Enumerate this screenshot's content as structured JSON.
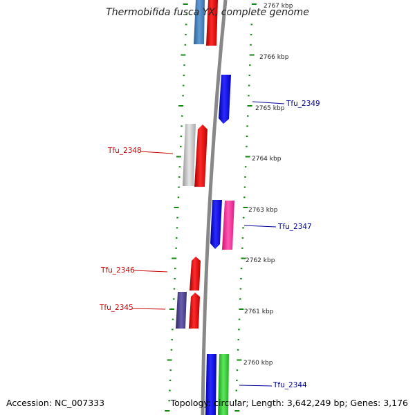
{
  "title": "Thermobifida fusca YX, complete genome",
  "accession": "Accession: NC_007333",
  "topology": "Topology: circular; Length: 3,642,249 bp; Genes: 3,176",
  "kbp_labels": [
    "2767 kbp",
    "2766 kbp",
    "2765 kbp",
    "2764 kbp",
    "2763 kbp",
    "2762 kbp",
    "2761 kbp",
    "2760 kbp"
  ],
  "gene_labels": {
    "tfu_2349": "Tfu_2349",
    "tfu_2348": "Tfu_2348",
    "tfu_2347": "Tfu_2347",
    "tfu_2346": "Tfu_2346",
    "tfu_2345": "Tfu_2345",
    "tfu_2344": "Tfu_2344"
  },
  "colors": {
    "forward_label": "#cc0000",
    "reverse_label": "#000099",
    "backbone": "#888888",
    "ticks": "#118811",
    "red": "#ee0000",
    "blue": "#1a1aee",
    "steelblue": "#4a86c0",
    "gray": "#bbbbbb",
    "pink": "#ff2d9a",
    "purple": "#4b3f8c",
    "green": "#33cc33"
  }
}
